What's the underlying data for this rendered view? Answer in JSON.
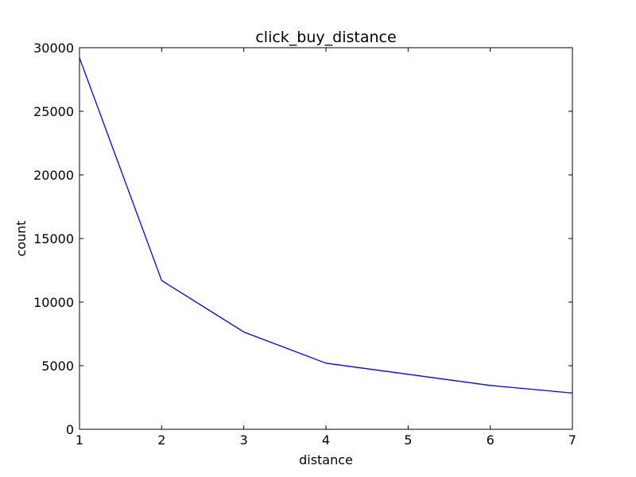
{
  "chart_data": {
    "type": "line",
    "title": "click_buy_distance",
    "xlabel": "distance",
    "ylabel": "count",
    "xlim": [
      1,
      7
    ],
    "ylim": [
      0,
      30000
    ],
    "xticks": [
      1,
      2,
      3,
      4,
      5,
      6,
      7
    ],
    "yticks": [
      0,
      5000,
      10000,
      15000,
      20000,
      25000,
      30000
    ],
    "grid": false,
    "legend": "none",
    "series": [
      {
        "color": "#0000ff",
        "x": [
          1,
          2,
          3,
          4,
          6,
          7
        ],
        "y": [
          29200,
          11700,
          7650,
          5200,
          3450,
          2850
        ]
      }
    ]
  }
}
